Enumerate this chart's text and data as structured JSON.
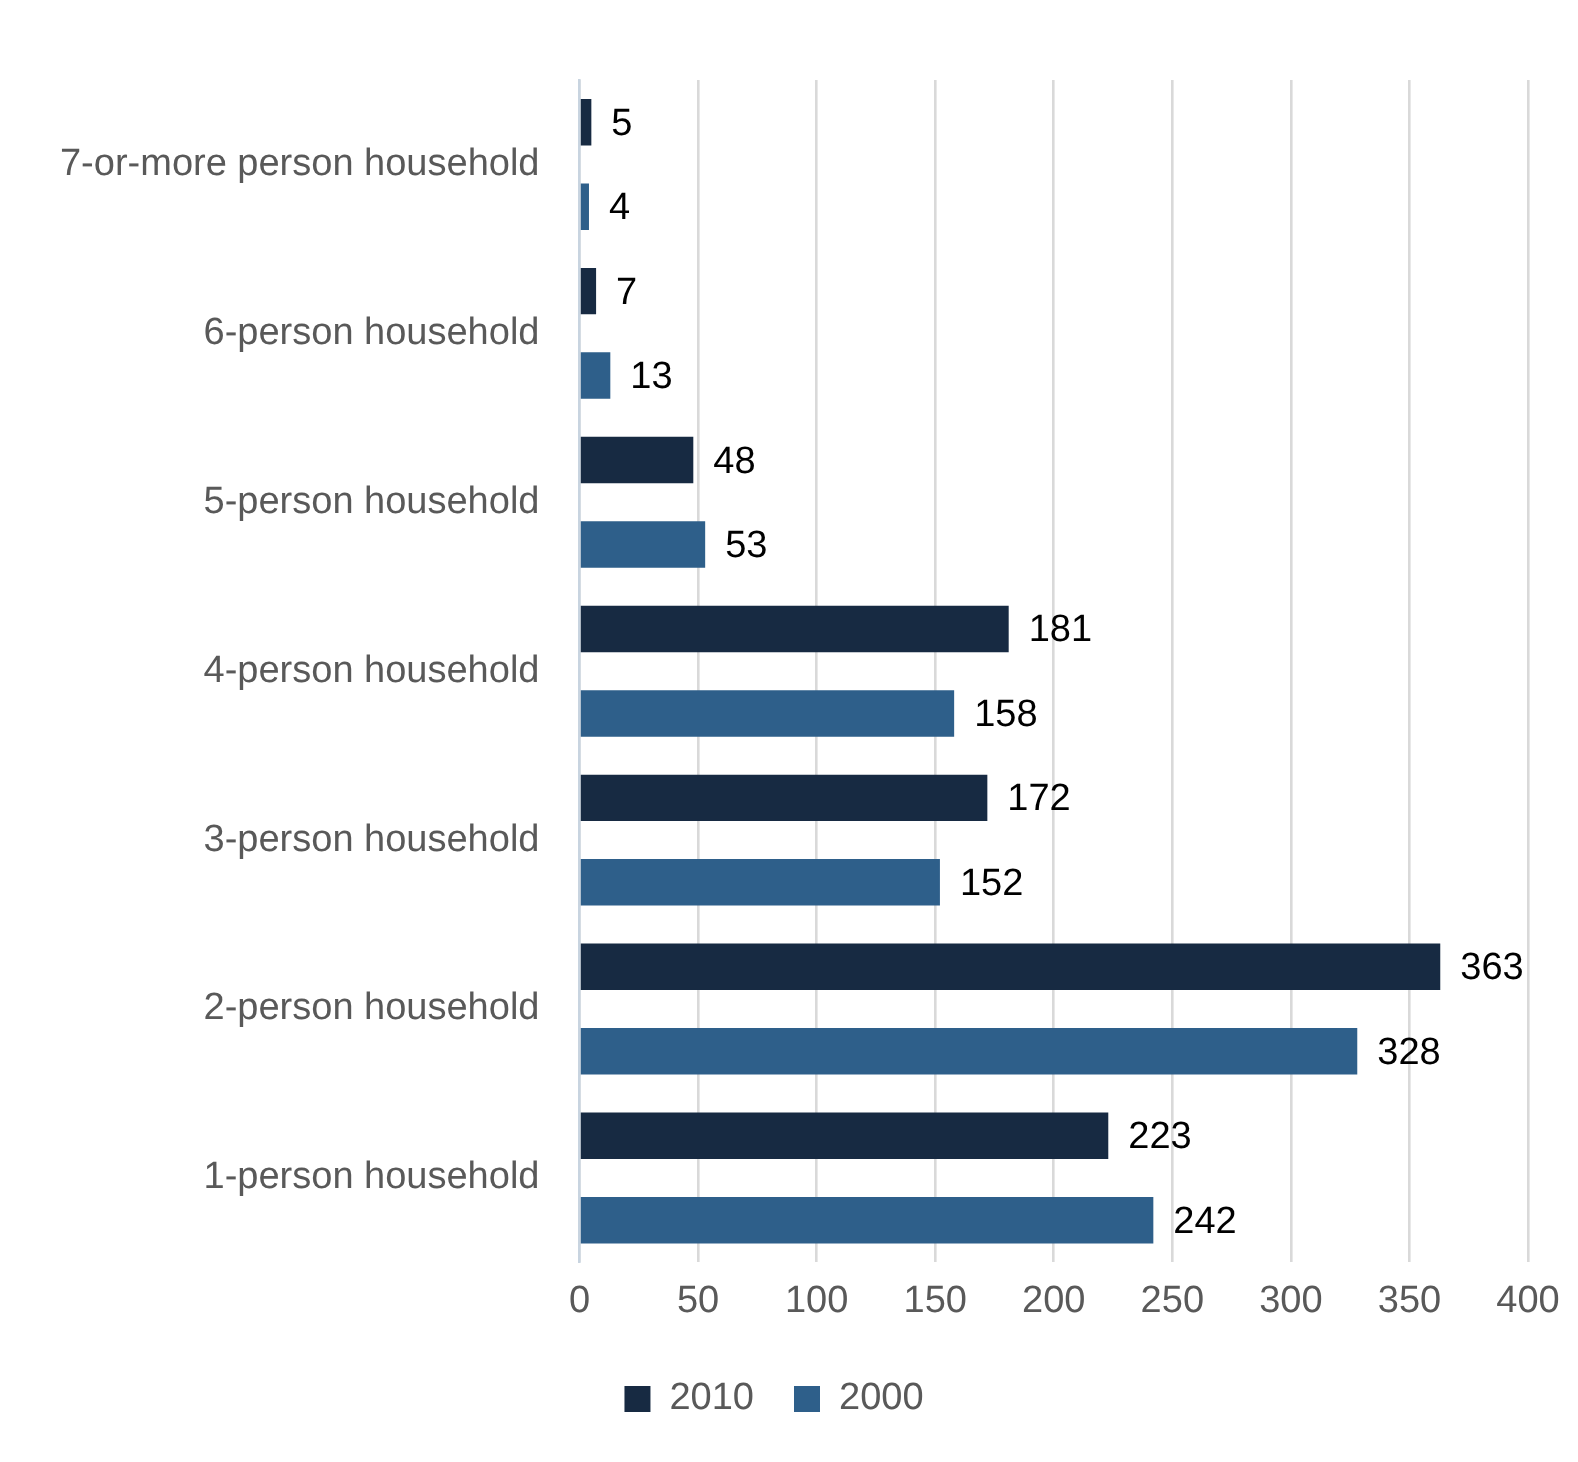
{
  "chart_data": {
    "type": "bar",
    "orientation": "horizontal",
    "categories": [
      "7-or-more person household",
      "6-person household",
      "5-person household",
      "4-person household",
      "3-person household",
      "2-person household",
      "1-person household"
    ],
    "series": [
      {
        "name": "2010",
        "color": "#172a42",
        "values": [
          5,
          7,
          48,
          181,
          172,
          363,
          223
        ]
      },
      {
        "name": "2000",
        "color": "#2e5f8a",
        "values": [
          4,
          13,
          53,
          158,
          152,
          328,
          242
        ]
      }
    ],
    "xlim": [
      0,
      400
    ],
    "xticks": [
      0,
      50,
      100,
      150,
      200,
      250,
      300,
      350,
      400
    ],
    "grid": "x",
    "legend": "bottom",
    "data_labels": true
  }
}
